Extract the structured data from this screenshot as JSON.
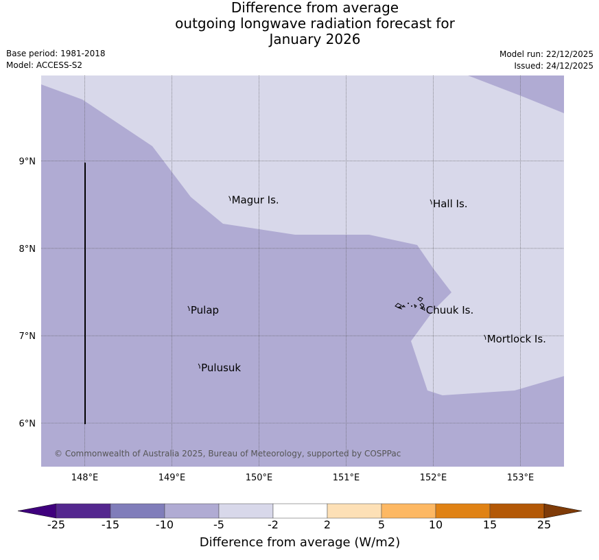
{
  "header": {
    "title_lines": [
      "Difference from average",
      "outgoing longwave radiation forecast for",
      "January 2026"
    ],
    "base_period": "Base period: 1981-2018",
    "model": "Model: ACCESS-S2",
    "model_run": "Model run: 22/12/2025",
    "issued": "Issued: 24/12/2025"
  },
  "map": {
    "lon_range": [
      147.5,
      153.5
    ],
    "lat_range": [
      5.5,
      9.98
    ],
    "lon_ticks": [
      "148°E",
      "149°E",
      "150°E",
      "151°E",
      "152°E",
      "153°E"
    ],
    "lat_ticks": [
      "9°N",
      "8°N",
      "7°N",
      "6°N"
    ],
    "places": [
      {
        "name": "Magur Is.",
        "lon": 149.67,
        "lat": 8.56
      },
      {
        "name": "Hall Is.",
        "lon": 151.98,
        "lat": 8.52
      },
      {
        "name": "Pulap",
        "lon": 149.2,
        "lat": 7.3
      },
      {
        "name": "Chuuk Is.",
        "lon": 151.9,
        "lat": 7.3
      },
      {
        "name": "Mortlock Is.",
        "lon": 152.6,
        "lat": 6.97
      },
      {
        "name": "Pulusuk",
        "lon": 149.32,
        "lat": 6.64
      }
    ],
    "copyright": "© Commonwealth of Australia 2025, Bureau of Meteorology, supported by COSPPac",
    "background_color": "#b0abd3",
    "light_region_color": "#d8d8ea"
  },
  "colorbar": {
    "title": "Difference from average (W/m2)",
    "tick_labels": [
      "-25",
      "-15",
      "-10",
      "-5",
      "-2",
      "2",
      "5",
      "10",
      "15",
      "25"
    ],
    "colors": [
      "#3f007d",
      "#54278f",
      "#807dba",
      "#b0abd3",
      "#d8d8ea",
      "#ffffff",
      "#fde0b6",
      "#fdb863",
      "#e08214",
      "#b35806",
      "#7f3b08"
    ]
  }
}
